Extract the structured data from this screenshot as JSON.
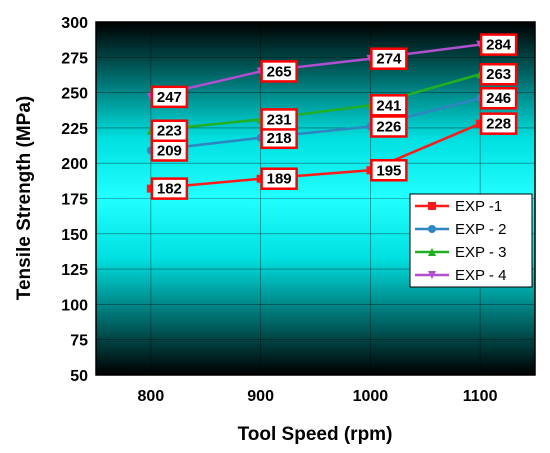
{
  "chart_data": {
    "type": "line",
    "xlabel": "Tool Speed (rpm)",
    "ylabel": "Tensile Strength (MPa)",
    "x": [
      800,
      900,
      1000,
      1100
    ],
    "xticks": [
      "800",
      "900",
      "1000",
      "1100"
    ],
    "xlim": [
      750,
      1150
    ],
    "ylim": [
      50,
      300
    ],
    "yticks": [
      50,
      75,
      100,
      125,
      150,
      175,
      200,
      225,
      250,
      275,
      300
    ],
    "grid": true,
    "legend_position": "right-middle",
    "series": [
      {
        "name": "EXP -1",
        "values": [
          182,
          189,
          195,
          228
        ],
        "color": "#ff1a1a",
        "marker": "square"
      },
      {
        "name": "EXP - 2",
        "values": [
          209,
          218,
          226,
          246
        ],
        "color": "#2e86c1",
        "marker": "circle"
      },
      {
        "name": "EXP - 3",
        "values": [
          223,
          231,
          241,
          263
        ],
        "color": "#22b022",
        "marker": "triangle-up"
      },
      {
        "name": "EXP - 4",
        "values": [
          247,
          265,
          274,
          284
        ],
        "color": "#b04fcf",
        "marker": "triangle-down"
      }
    ]
  }
}
